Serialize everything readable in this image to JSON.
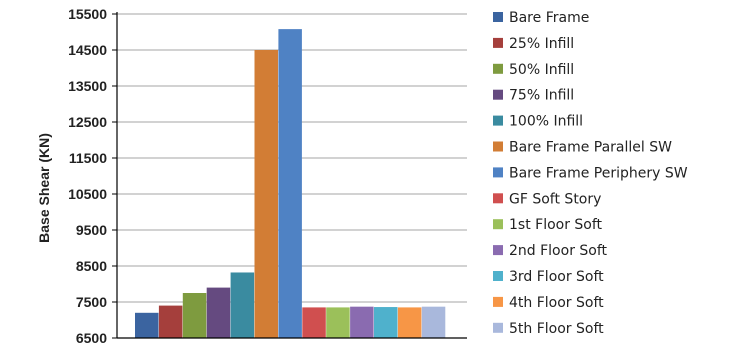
{
  "chart_data": {
    "type": "bar",
    "title": "",
    "xlabel": "",
    "ylabel": "Base Shear (KN)",
    "ylim": [
      6500,
      15500
    ],
    "yticks": [
      6500,
      7500,
      8500,
      9500,
      10500,
      11500,
      12500,
      13500,
      14500,
      15500
    ],
    "grid": true,
    "legend_position": "right",
    "series": [
      {
        "name": "Bare Frame",
        "values": [
          7200
        ],
        "color": "#3B64A0"
      },
      {
        "name": "25% Infill",
        "values": [
          7400
        ],
        "color": "#A53F3C"
      },
      {
        "name": "50% Infill",
        "values": [
          7750
        ],
        "color": "#7E9B3F"
      },
      {
        "name": "75% Infill",
        "values": [
          7900
        ],
        "color": "#654A80"
      },
      {
        "name": "100% Infill",
        "values": [
          8320
        ],
        "color": "#3A8BA0"
      },
      {
        "name": "Bare Frame Parallel SW",
        "values": [
          14500
        ],
        "color": "#D27D35"
      },
      {
        "name": "Bare Frame Periphery SW",
        "values": [
          15080
        ],
        "color": "#4F82C4"
      },
      {
        "name": "GF Soft Story",
        "values": [
          7350
        ],
        "color": "#D04F4F"
      },
      {
        "name": "1st Floor Soft",
        "values": [
          7350
        ],
        "color": "#9BC05A"
      },
      {
        "name": "2nd Floor Soft",
        "values": [
          7370
        ],
        "color": "#8A6BB0"
      },
      {
        "name": "3rd Floor Soft",
        "values": [
          7360
        ],
        "color": "#4FB1CC"
      },
      {
        "name": "4th Floor Soft",
        "values": [
          7350
        ],
        "color": "#F79646"
      },
      {
        "name": "5th Floor Soft",
        "values": [
          7370
        ],
        "color": "#A9B8DC"
      }
    ]
  }
}
